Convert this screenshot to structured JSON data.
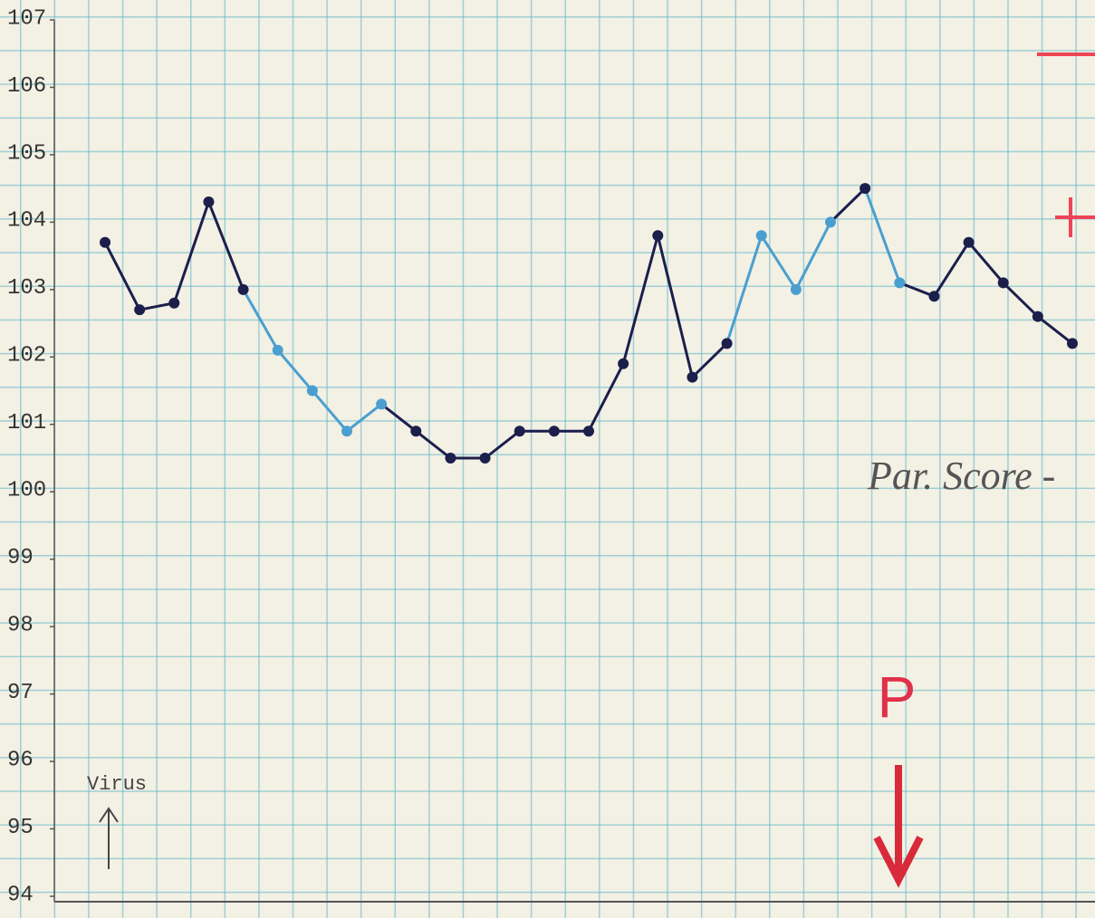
{
  "chart_data": {
    "type": "line",
    "values": [
      103.7,
      102.7,
      102.8,
      104.3,
      103.0,
      102.1,
      101.5,
      100.9,
      101.3,
      100.9,
      100.5,
      100.5,
      100.9,
      100.9,
      100.9,
      101.9,
      103.8,
      101.7,
      102.2,
      103.8,
      103.0,
      104.0,
      104.5,
      103.1,
      102.9,
      103.7,
      103.1,
      102.6,
      102.2
    ],
    "point_colors": [
      "#1c1f4c",
      "#1c1f4c",
      "#1c1f4c",
      "#1c1f4c",
      "#1c1f4c",
      "#4a9fd0",
      "#4a9fd0",
      "#4a9fd0",
      "#4a9fd0",
      "#1c1f4c",
      "#1c1f4c",
      "#1c1f4c",
      "#1c1f4c",
      "#1c1f4c",
      "#1c1f4c",
      "#1c1f4c",
      "#1c1f4c",
      "#1c1f4c",
      "#1c1f4c",
      "#4a9fd0",
      "#4a9fd0",
      "#4a9fd0",
      "#1c1f4c",
      "#4a9fd0",
      "#1c1f4c",
      "#1c1f4c",
      "#1c1f4c",
      "#1c1f4c",
      "#1c1f4c"
    ],
    "ylim": [
      94,
      107
    ],
    "yticks": [
      94,
      95,
      96,
      97,
      98,
      99,
      100,
      101,
      102,
      103,
      104,
      105,
      106,
      107
    ],
    "annotations": {
      "virus": "Virus",
      "score": "Par. Score -",
      "p": "P"
    }
  }
}
